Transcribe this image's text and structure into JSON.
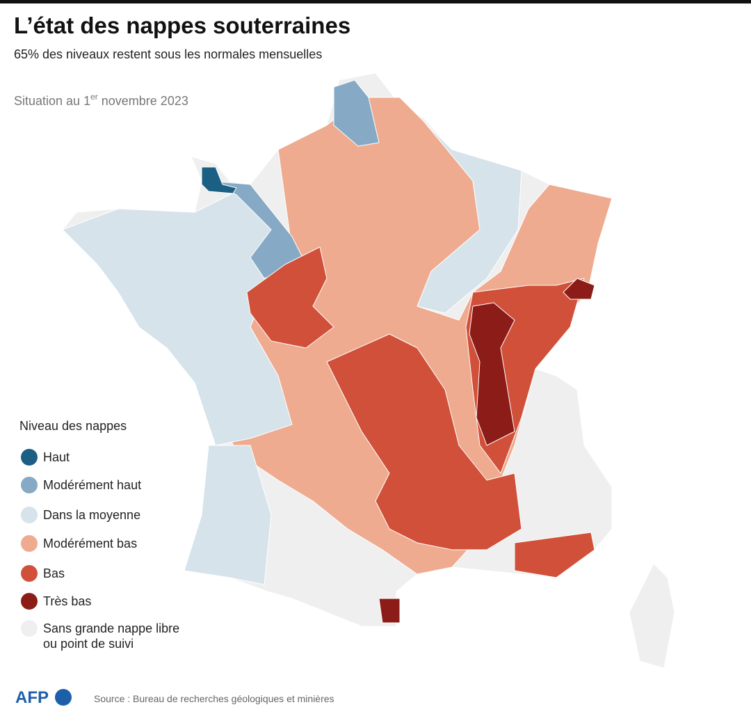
{
  "header": {
    "title": "L’état des nappes souterraines",
    "subtitle": "65% des niveaux restent sous les normales mensuelles"
  },
  "date": {
    "prefix": "Situation au 1",
    "superscript": "er",
    "suffix": " novembre 2023"
  },
  "legend": {
    "title": "Niveau des nappes",
    "items": [
      {
        "lines": [
          "Haut"
        ],
        "color": "#1c5f85"
      },
      {
        "lines": [
          "Modérément haut"
        ],
        "color": "#86aac5"
      },
      {
        "lines": [
          "Dans la moyenne"
        ],
        "color": "#d6e3ea"
      },
      {
        "lines": [
          "Modérément bas"
        ],
        "color": "#eeab8f"
      },
      {
        "lines": [
          "Bas"
        ],
        "color": "#d1503a"
      },
      {
        "lines": [
          "Très bas"
        ],
        "color": "#8c1c17"
      },
      {
        "lines": [
          "Sans grande nappe libre",
          "ou point de suivi"
        ],
        "color": "#efefef"
      }
    ]
  },
  "footer": {
    "logo": "AFP",
    "source": "Source : Bureau de recherches géologiques et minières"
  }
}
